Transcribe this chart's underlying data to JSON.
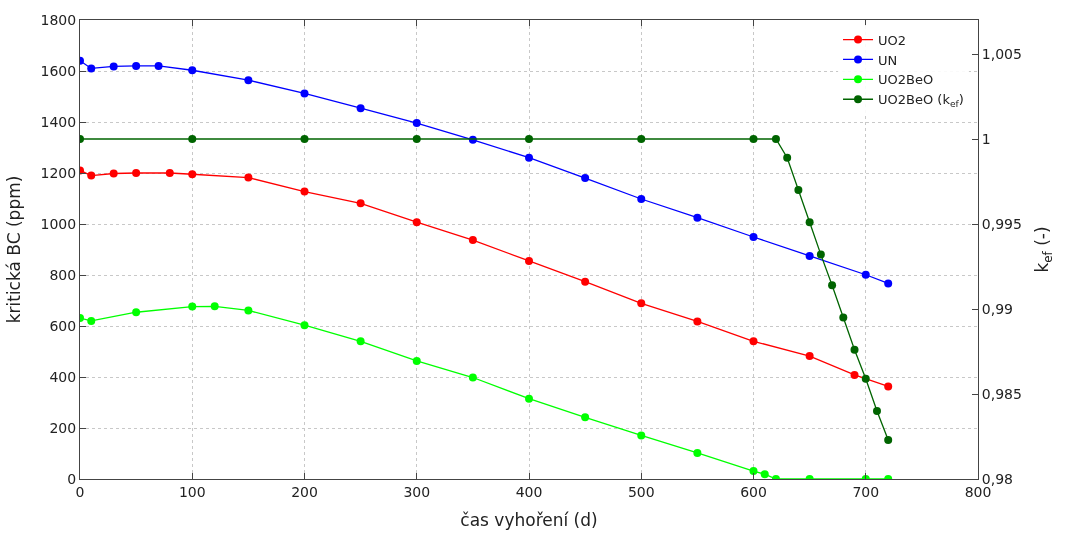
{
  "chart_data": {
    "type": "line",
    "xlabel": "čas vyhoření (d)",
    "ylabel": "kritická BC (ppm)",
    "y2label": "k$_{ef}$ (-)",
    "series": [
      {
        "name": "UO2",
        "color": "#ff0000",
        "x": [
          0,
          10,
          30,
          50,
          80,
          100,
          150,
          200,
          250,
          300,
          350,
          400,
          450,
          500,
          550,
          600,
          650,
          690,
          720
        ],
        "values": [
          1210,
          1190,
          1198,
          1200,
          1200,
          1195,
          1182,
          1127,
          1081,
          1007,
          937,
          855,
          774,
          689,
          618,
          540,
          482,
          408,
          363
        ]
      },
      {
        "name": "UN",
        "color": "#0000ff",
        "x": [
          0,
          10,
          30,
          50,
          70,
          100,
          150,
          200,
          250,
          300,
          350,
          400,
          450,
          500,
          550,
          600,
          650,
          700,
          720
        ],
        "values": [
          1640,
          1610,
          1618,
          1620,
          1620,
          1603,
          1564,
          1512,
          1454,
          1396,
          1330,
          1260,
          1180,
          1098,
          1025,
          949,
          875,
          801,
          767
        ]
      },
      {
        "name": "UO2BeO",
        "color": "#00ff00",
        "x": [
          0,
          10,
          50,
          100,
          120,
          150,
          200,
          250,
          300,
          350,
          400,
          450,
          500,
          550,
          600,
          610,
          620,
          650,
          700,
          720
        ],
        "values": [
          631,
          620,
          654,
          676,
          677,
          661,
          603,
          540,
          463,
          398,
          315,
          242,
          171,
          102,
          31,
          19,
          0,
          0,
          0,
          0
        ]
      },
      {
        "name": "UO2BeO (k$_{ef}$)",
        "color": "#006400",
        "axis": "y2",
        "x": [
          0,
          100,
          200,
          300,
          400,
          500,
          600,
          620,
          630,
          640,
          650,
          660,
          670,
          680,
          690,
          700,
          710,
          720
        ],
        "values": [
          1,
          1,
          1,
          1,
          1,
          1,
          1,
          1,
          0.9989,
          0.997,
          0.9951,
          0.9932,
          0.9914,
          0.9895,
          0.9876,
          0.9859,
          0.984,
          0.9823
        ]
      }
    ],
    "xlim": [
      0,
      800
    ],
    "xticks": [
      0,
      100,
      200,
      300,
      400,
      500,
      600,
      700,
      800
    ],
    "ylim": [
      0,
      1800
    ],
    "yticks": [
      0,
      200,
      400,
      600,
      800,
      1000,
      1200,
      1400,
      1600,
      1800
    ],
    "y2lim": [
      0.98,
      1.007
    ],
    "y2ticks": [
      {
        "value": 0.98,
        "label": "0,98"
      },
      {
        "value": 0.985,
        "label": "0,985"
      },
      {
        "value": 0.99,
        "label": "0,99"
      },
      {
        "value": 0.995,
        "label": "0,995"
      },
      {
        "value": 1,
        "label": "1"
      },
      {
        "value": 1.005,
        "label": "1,005"
      }
    ],
    "grid": true,
    "legend": "top right",
    "marker": "circle",
    "line_style": "solid"
  }
}
